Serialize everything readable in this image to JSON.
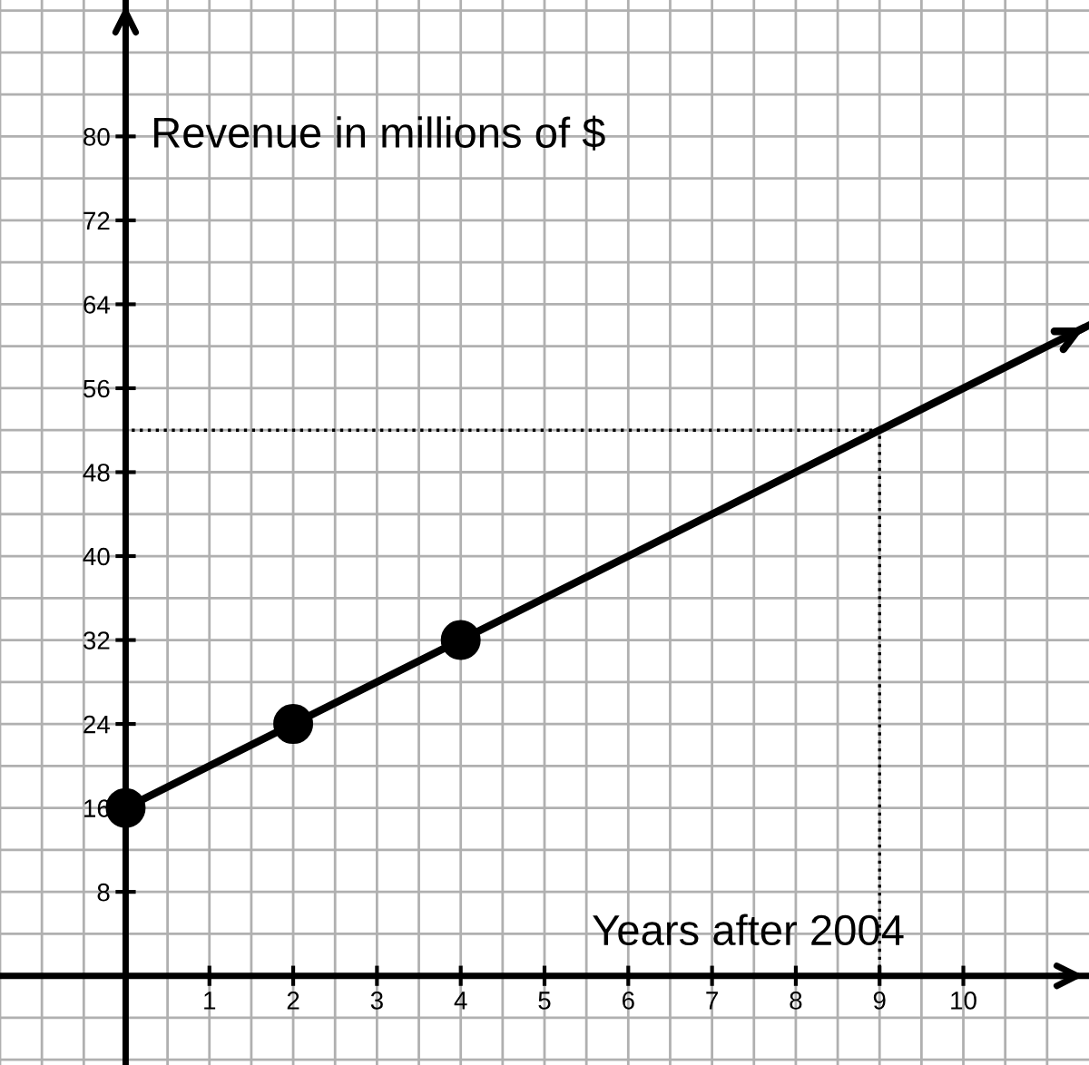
{
  "chart_data": {
    "type": "line",
    "xlabel": "Years after 2004",
    "ylabel": "Revenue in millions of $",
    "series": [
      {
        "type": "scatter",
        "color": "#000000",
        "marker": "circle",
        "x": [
          0,
          2,
          4
        ],
        "values": [
          16,
          24,
          32
        ]
      },
      {
        "color": "#000000",
        "marker": "none",
        "line_style": "solid",
        "x": [
          0,
          11.5
        ],
        "values": [
          16,
          62
        ]
      },
      {
        "color": "#000000",
        "marker": "none",
        "line_style": "dotted",
        "x": [
          9,
          9,
          0
        ],
        "values": [
          0,
          52,
          52
        ]
      }
    ],
    "xlim": [
      -1.5,
      11.5
    ],
    "ylim": [
      -8.5,
      93
    ],
    "xticks": [
      1,
      2,
      3,
      4,
      5,
      6,
      7,
      8,
      9,
      10
    ],
    "yticks": [
      8,
      16,
      24,
      32,
      40,
      48,
      56,
      64,
      72,
      80
    ],
    "grid": true
  }
}
